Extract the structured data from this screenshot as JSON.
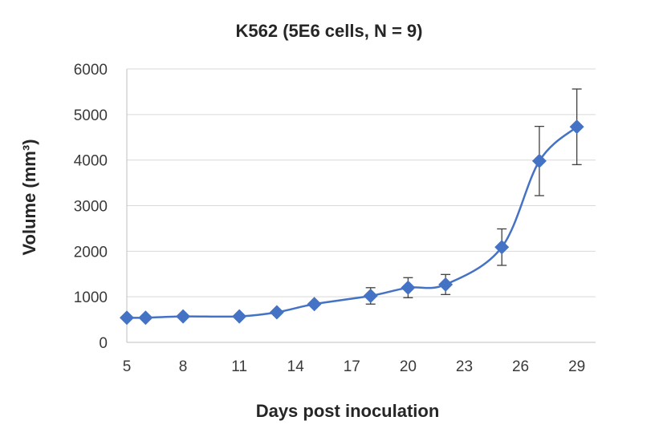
{
  "chart_data": {
    "type": "line",
    "title": "K562 (5E6 cells, N = 9)",
    "xlabel": "Days post inoculation",
    "ylabel": "Volume (mm³)",
    "xlim": [
      5,
      30
    ],
    "ylim": [
      0,
      6000
    ],
    "xticks": [
      5,
      8,
      11,
      14,
      17,
      20,
      23,
      26,
      29
    ],
    "yticks": [
      0,
      1000,
      2000,
      3000,
      4000,
      5000,
      6000
    ],
    "grid": "horizontal",
    "marker": "diamond",
    "color": "#4472c4",
    "series": [
      {
        "x": [
          5,
          6,
          8,
          11,
          13,
          15,
          18,
          20,
          22,
          25,
          27,
          29
        ],
        "y": [
          540,
          540,
          570,
          570,
          660,
          840,
          1020,
          1200,
          1270,
          2090,
          3980,
          4730
        ],
        "error": [
          0,
          0,
          0,
          0,
          0,
          0,
          180,
          220,
          220,
          400,
          760,
          830
        ]
      }
    ]
  }
}
